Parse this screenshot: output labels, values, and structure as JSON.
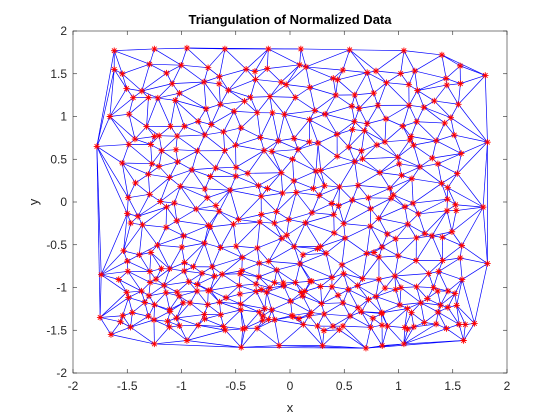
{
  "chart_data": {
    "type": "scatter",
    "title": "Triangulation of Normalized Data",
    "xlabel": "x",
    "ylabel": "y",
    "xlim": [
      -2,
      2
    ],
    "ylim": [
      -2,
      2
    ],
    "x_ticks": [
      "-2",
      "-1.5",
      "-1",
      "-0.5",
      "0",
      "0.5",
      "1",
      "1.5",
      "2"
    ],
    "y_ticks": [
      "-2",
      "-1.5",
      "-1",
      "-0.5",
      "0",
      "0.5",
      "1",
      "1.5",
      "2"
    ],
    "grid": false,
    "marker": "*",
    "marker_color": "#ff0000",
    "edge_color": "#0000ff",
    "box_color": "#262626",
    "point_count": 420,
    "hull_points": [
      [
        -1.62,
        1.77
      ],
      [
        -1.25,
        1.79
      ],
      [
        -0.95,
        1.8
      ],
      [
        -0.6,
        1.79
      ],
      [
        -0.2,
        1.79
      ],
      [
        0.1,
        1.79
      ],
      [
        0.55,
        1.78
      ],
      [
        1.05,
        1.77
      ],
      [
        1.4,
        1.72
      ],
      [
        1.8,
        1.48
      ],
      [
        1.82,
        0.7
      ],
      [
        1.78,
        -0.06
      ],
      [
        1.82,
        -0.72
      ],
      [
        1.7,
        -1.42
      ],
      [
        1.6,
        -1.62
      ],
      [
        1.05,
        -1.66
      ],
      [
        0.85,
        -1.68
      ],
      [
        0.7,
        -1.71
      ],
      [
        0.3,
        -1.68
      ],
      [
        -0.1,
        -1.68
      ],
      [
        -0.45,
        -1.7
      ],
      [
        -0.95,
        -1.62
      ],
      [
        -1.25,
        -1.66
      ],
      [
        -1.65,
        -1.55
      ],
      [
        -1.75,
        -1.35
      ],
      [
        -1.74,
        -0.85
      ],
      [
        -1.78,
        0.65
      ],
      [
        -1.66,
        1.0
      ],
      [
        -1.62,
        1.55
      ]
    ]
  }
}
